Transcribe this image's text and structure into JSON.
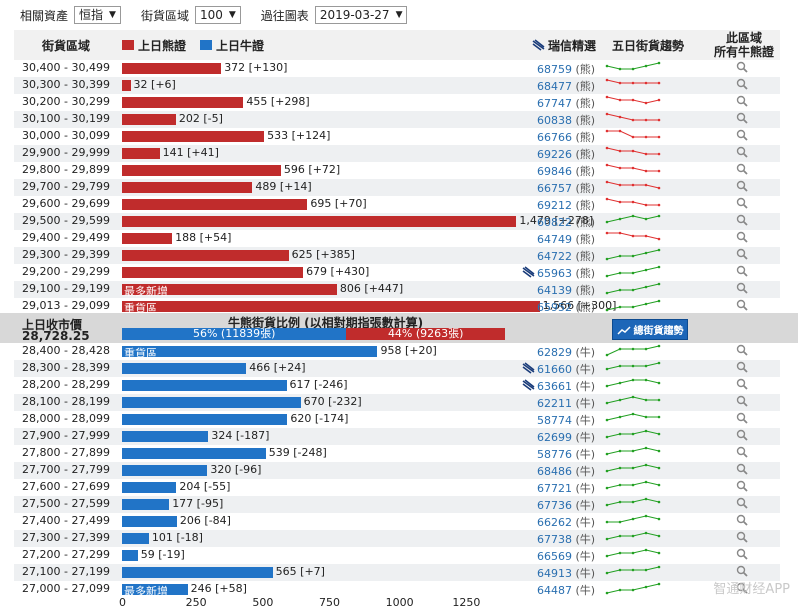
{
  "toolbar": {
    "asset_label": "相關資產",
    "asset_value": "恒指",
    "range_label": "街貨區域",
    "range_value": "100",
    "date_label": "過往圖表",
    "date_value": "2019-03-27"
  },
  "header": {
    "range_col": "街貨區域",
    "bear_legend": "上日熊證",
    "bull_legend": "上日牛證",
    "ubs_col": "瑞信精選",
    "trend_col": "五日街貨趨勢",
    "detail_col_line1": "此區域",
    "detail_col_line2": "所有牛熊證"
  },
  "colors": {
    "bear": "#c02c2c",
    "bull": "#2174c7",
    "trend_up": "#22a022",
    "trend_down": "#e03030"
  },
  "bear_rows": [
    {
      "range": "30,400 - 30,499",
      "value": 372,
      "label": "372 [+130]",
      "code": "68759",
      "kind": "(熊)",
      "ubs": false,
      "trend": [
        3,
        2,
        2,
        3,
        4
      ],
      "tc": "green"
    },
    {
      "range": "30,300 - 30,399",
      "value": 32,
      "label": "32 [+6]",
      "code": "68477",
      "kind": "(熊)",
      "ubs": false,
      "trend": [
        4,
        3,
        3,
        3,
        3
      ],
      "tc": "red"
    },
    {
      "range": "30,200 - 30,299",
      "value": 455,
      "label": "455 [+298]",
      "code": "67747",
      "kind": "(熊)",
      "ubs": false,
      "trend": [
        4,
        3,
        3,
        2,
        3
      ],
      "tc": "red"
    },
    {
      "range": "30,100 - 30,199",
      "value": 202,
      "label": "202 [-5]",
      "code": "60838",
      "kind": "(熊)",
      "ubs": false,
      "trend": [
        4,
        3,
        2,
        2,
        2
      ],
      "tc": "red"
    },
    {
      "range": "30,000 - 30,099",
      "value": 533,
      "label": "533 [+124]",
      "code": "66766",
      "kind": "(熊)",
      "ubs": false,
      "trend": [
        4,
        4,
        2,
        2,
        2
      ],
      "tc": "red"
    },
    {
      "range": "29,900 - 29,999",
      "value": 141,
      "label": "141 [+41]",
      "code": "69226",
      "kind": "(熊)",
      "ubs": false,
      "trend": [
        4,
        3,
        3,
        2,
        2
      ],
      "tc": "red"
    },
    {
      "range": "29,800 - 29,899",
      "value": 596,
      "label": "596 [+72]",
      "code": "69846",
      "kind": "(熊)",
      "ubs": false,
      "trend": [
        4,
        3,
        3,
        2,
        2
      ],
      "tc": "red"
    },
    {
      "range": "29,700 - 29,799",
      "value": 489,
      "label": "489 [+14]",
      "code": "66757",
      "kind": "(熊)",
      "ubs": false,
      "trend": [
        4,
        3,
        3,
        3,
        2
      ],
      "tc": "red"
    },
    {
      "range": "29,600 - 29,699",
      "value": 695,
      "label": "695 [+70]",
      "code": "69212",
      "kind": "(熊)",
      "ubs": false,
      "trend": [
        4,
        3,
        3,
        2,
        2
      ],
      "tc": "red"
    },
    {
      "range": "29,500 - 29,599",
      "value": 1479,
      "label": "1,479 [+278]",
      "code": "60822",
      "kind": "(熊)",
      "ubs": false,
      "trend": [
        2,
        3,
        4,
        3,
        4
      ],
      "tc": "green"
    },
    {
      "range": "29,400 - 29,499",
      "value": 188,
      "label": "188 [+54]",
      "code": "64749",
      "kind": "(熊)",
      "ubs": false,
      "trend": [
        4,
        4,
        3,
        3,
        2
      ],
      "tc": "red"
    },
    {
      "range": "29,300 - 29,399",
      "value": 625,
      "label": "625 [+385]",
      "code": "64722",
      "kind": "(熊)",
      "ubs": false,
      "trend": [
        1,
        2,
        2,
        3,
        4
      ],
      "tc": "green"
    },
    {
      "range": "29,200 - 29,299",
      "value": 679,
      "label": "679 [+430]",
      "code": "65963",
      "kind": "(熊)",
      "ubs": true,
      "trend": [
        1,
        2,
        2,
        3,
        4
      ],
      "tc": "green"
    },
    {
      "range": "29,100 - 29,199",
      "value": 806,
      "label": "806 [+447]",
      "code": "64139",
      "kind": "(熊)",
      "ubs": false,
      "tag": "最多新增",
      "trend": [
        1,
        2,
        2,
        3,
        4
      ],
      "tc": "green"
    },
    {
      "range": "29,013 - 29,099",
      "value": 1566,
      "label": "1,566 [+300]",
      "code": "65952",
      "kind": "(熊)",
      "ubs": false,
      "tag": "重貨區",
      "trend": [
        1,
        2,
        2,
        3,
        4
      ],
      "tc": "green"
    }
  ],
  "middle": {
    "close_label": "上日收市價",
    "close_value": "28,728.25",
    "ratio_title": "牛熊街貨比例 (以相對期指張數計算)",
    "bull_text": "56% (11839張)",
    "bear_text": "44% (9263張)",
    "button_label": "總街貨趨勢"
  },
  "bull_rows": [
    {
      "range": "28,400 - 28,428",
      "value": 958,
      "label": "958 [+20]",
      "code": "62829",
      "kind": "(牛)",
      "ubs": false,
      "tag": "重貨區",
      "trend": [
        1,
        3,
        3,
        3,
        4
      ],
      "tc": "green"
    },
    {
      "range": "28,300 - 28,399",
      "value": 466,
      "label": "466 [+24]",
      "code": "61660",
      "kind": "(牛)",
      "ubs": true,
      "trend": [
        2,
        3,
        3,
        3,
        4
      ],
      "tc": "green"
    },
    {
      "range": "28,200 - 28,299",
      "value": 617,
      "label": "617 [-246]",
      "code": "63661",
      "kind": "(牛)",
      "ubs": true,
      "trend": [
        2,
        3,
        4,
        4,
        3
      ],
      "tc": "green"
    },
    {
      "range": "28,100 - 28,199",
      "value": 670,
      "label": "670 [-232]",
      "code": "62211",
      "kind": "(牛)",
      "ubs": false,
      "trend": [
        2,
        3,
        4,
        3,
        3
      ],
      "tc": "green"
    },
    {
      "range": "28,000 - 28,099",
      "value": 620,
      "label": "620 [-174]",
      "code": "58774",
      "kind": "(牛)",
      "ubs": false,
      "trend": [
        2,
        3,
        4,
        3,
        3
      ],
      "tc": "green"
    },
    {
      "range": "27,900 - 27,999",
      "value": 324,
      "label": "324 [-187]",
      "code": "62699",
      "kind": "(牛)",
      "ubs": false,
      "trend": [
        2,
        3,
        3,
        4,
        3
      ],
      "tc": "green"
    },
    {
      "range": "27,800 - 27,899",
      "value": 539,
      "label": "539 [-248]",
      "code": "58776",
      "kind": "(牛)",
      "ubs": false,
      "trend": [
        2,
        3,
        3,
        4,
        3
      ],
      "tc": "green"
    },
    {
      "range": "27,700 - 27,799",
      "value": 320,
      "label": "320 [-96]",
      "code": "68486",
      "kind": "(牛)",
      "ubs": false,
      "trend": [
        2,
        3,
        3,
        4,
        3
      ],
      "tc": "green"
    },
    {
      "range": "27,600 - 27,699",
      "value": 204,
      "label": "204 [-55]",
      "code": "67721",
      "kind": "(牛)",
      "ubs": false,
      "trend": [
        2,
        3,
        3,
        4,
        3
      ],
      "tc": "green"
    },
    {
      "range": "27,500 - 27,599",
      "value": 177,
      "label": "177 [-95]",
      "code": "67736",
      "kind": "(牛)",
      "ubs": false,
      "trend": [
        2,
        3,
        3,
        4,
        3
      ],
      "tc": "green"
    },
    {
      "range": "27,400 - 27,499",
      "value": 206,
      "label": "206 [-84]",
      "code": "66262",
      "kind": "(牛)",
      "ubs": false,
      "trend": [
        2,
        2,
        3,
        4,
        3
      ],
      "tc": "green"
    },
    {
      "range": "27,300 - 27,399",
      "value": 101,
      "label": "101 [-18]",
      "code": "67738",
      "kind": "(牛)",
      "ubs": false,
      "trend": [
        2,
        3,
        3,
        4,
        3
      ],
      "tc": "green"
    },
    {
      "range": "27,200 - 27,299",
      "value": 59,
      "label": "59 [-19]",
      "code": "66569",
      "kind": "(牛)",
      "ubs": false,
      "trend": [
        2,
        3,
        3,
        4,
        3
      ],
      "tc": "green"
    },
    {
      "range": "27,100 - 27,199",
      "value": 565,
      "label": "565 [+7]",
      "code": "64913",
      "kind": "(牛)",
      "ubs": false,
      "trend": [
        2,
        3,
        3,
        3,
        4
      ],
      "tc": "green"
    },
    {
      "range": "27,000 - 27,099",
      "value": 246,
      "label": "246 [+58]",
      "code": "64487",
      "kind": "(牛)",
      "ubs": false,
      "tag": "最多新增",
      "trend": [
        1,
        2,
        2,
        3,
        4
      ],
      "tc": "green"
    }
  ],
  "axis": {
    "ticks": [
      "0",
      "250",
      "500",
      "750",
      "1000",
      "1250"
    ],
    "max": 1500
  },
  "watermark": "智通财经APP"
}
